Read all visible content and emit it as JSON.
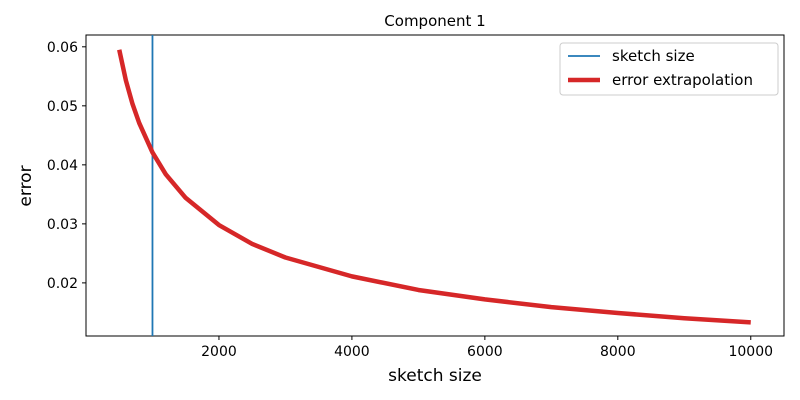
{
  "chart_data": {
    "type": "line",
    "title": "Component 1",
    "xlabel": "sketch size",
    "ylabel": "error",
    "xlim": [
      0,
      10500
    ],
    "ylim": [
      0.011,
      0.062
    ],
    "xticks": [
      2000,
      4000,
      6000,
      8000,
      10000
    ],
    "xtick_labels": [
      "2000",
      "4000",
      "6000",
      "8000",
      "10000"
    ],
    "yticks": [
      0.02,
      0.03,
      0.04,
      0.05,
      0.06
    ],
    "ytick_labels": [
      "0.02",
      "0.03",
      "0.04",
      "0.05",
      "0.06"
    ],
    "grid": false,
    "legend_position": "top-right",
    "series": [
      {
        "name": "sketch size",
        "kind": "vertical-line",
        "x": 1000,
        "color": "#1f77b4"
      },
      {
        "name": "error extrapolation",
        "kind": "curve",
        "color": "#d62728",
        "x": [
          500,
          600,
          700,
          800,
          1000,
          1200,
          1500,
          2000,
          2500,
          3000,
          4000,
          5000,
          6000,
          7000,
          8000,
          9000,
          10000
        ],
        "y": [
          0.0595,
          0.0543,
          0.0503,
          0.0471,
          0.0421,
          0.0384,
          0.0344,
          0.0298,
          0.0266,
          0.0243,
          0.0211,
          0.0188,
          0.0172,
          0.0159,
          0.0149,
          0.014,
          0.0133
        ]
      }
    ]
  }
}
